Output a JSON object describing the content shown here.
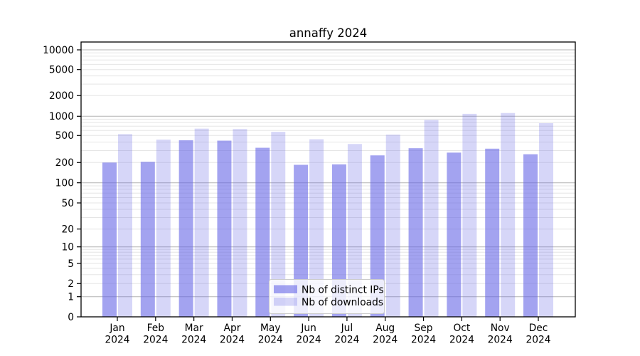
{
  "chart_data": {
    "type": "bar",
    "title": "annaffy 2024",
    "categories": [
      "Jan",
      "Feb",
      "Mar",
      "Apr",
      "May",
      "Jun",
      "Jul",
      "Aug",
      "Sep",
      "Oct",
      "Nov",
      "Dec"
    ],
    "category_year": "2024",
    "series": [
      {
        "name": "Nb of distinct IPs",
        "color": "rgba(102,102,230,0.6)",
        "values": [
          200,
          205,
          425,
          420,
          330,
          185,
          188,
          255,
          325,
          280,
          320,
          265
        ]
      },
      {
        "name": "Nb of downloads",
        "color": "rgba(102,102,230,0.27)",
        "values": [
          525,
          435,
          640,
          630,
          570,
          440,
          375,
          515,
          875,
          1085,
          1115,
          780
        ]
      }
    ],
    "y_axis": {
      "scale": "symlog",
      "ticks": [
        0,
        1,
        2,
        5,
        10,
        20,
        50,
        100,
        200,
        500,
        1000,
        2000,
        5000,
        10000
      ],
      "range": [
        0,
        12000
      ]
    },
    "x_axis": {
      "tick_label_lines": 2
    },
    "legend": {
      "position": "lower center"
    },
    "grid": {
      "on": true,
      "major_color": "#b3b3b3",
      "minor_color": "#e5e5e5"
    },
    "frame_color": "#000000",
    "background": "#ffffff"
  }
}
